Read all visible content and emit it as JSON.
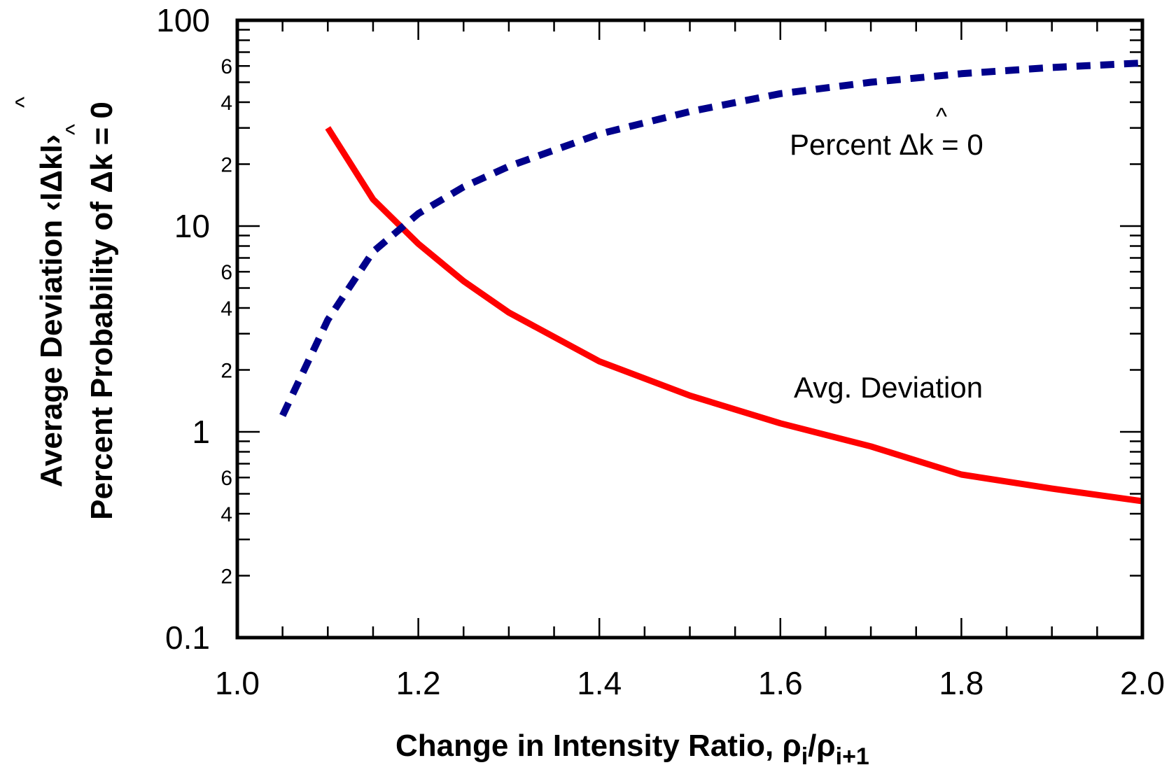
{
  "chart_data": {
    "type": "line",
    "title": "",
    "xlabel": "Change in Intensity Ratio, ρi/ρi+1",
    "xlabel_parts": {
      "main": "Change in Intensity Ratio, ρ",
      "sub1": "i",
      "slash": "/ρ",
      "sub2": "i+1"
    },
    "ylabel_line1": {
      "main": "Average Deviation ‹IΔkI›",
      "hat": "^"
    },
    "ylabel_line2": {
      "main": "Percent Probability of Δk = 0",
      "hat": "^"
    },
    "xlim": [
      1.0,
      2.0
    ],
    "ylim": [
      0.1,
      100
    ],
    "yscale": "log",
    "x_ticks": [
      {
        "value": 1.0,
        "label": "1.0"
      },
      {
        "value": 1.2,
        "label": "1.2"
      },
      {
        "value": 1.4,
        "label": "1.4"
      },
      {
        "value": 1.6,
        "label": "1.6"
      },
      {
        "value": 1.8,
        "label": "1.8"
      },
      {
        "value": 2.0,
        "label": "2.0"
      }
    ],
    "y_major_ticks": [
      {
        "value": 0.1,
        "label": "0.1"
      },
      {
        "value": 1,
        "label": "1"
      },
      {
        "value": 10,
        "label": "10"
      },
      {
        "value": 100,
        "label": "100"
      }
    ],
    "y_minor_labels": [
      {
        "value": 0.2,
        "label": "2"
      },
      {
        "value": 0.4,
        "label": "4"
      },
      {
        "value": 0.6,
        "label": "6"
      },
      {
        "value": 2,
        "label": "2"
      },
      {
        "value": 4,
        "label": "4"
      },
      {
        "value": 6,
        "label": "6"
      },
      {
        "value": 20,
        "label": "2"
      },
      {
        "value": 40,
        "label": "4"
      },
      {
        "value": 60,
        "label": "6"
      }
    ],
    "series": [
      {
        "name": "Avg. Deviation",
        "color": "#ff0000",
        "style": "solid",
        "x": [
          1.1,
          1.15,
          1.2,
          1.25,
          1.3,
          1.4,
          1.5,
          1.6,
          1.7,
          1.8,
          1.9,
          2.0
        ],
        "y": [
          30,
          13.5,
          8.2,
          5.4,
          3.8,
          2.2,
          1.5,
          1.1,
          0.85,
          0.62,
          0.53,
          0.46
        ]
      },
      {
        "name": "Percent Δk = 0",
        "color": "#00008b",
        "style": "dashed",
        "x": [
          1.05,
          1.1,
          1.15,
          1.2,
          1.25,
          1.3,
          1.4,
          1.5,
          1.6,
          1.7,
          1.8,
          1.9,
          2.0
        ],
        "y": [
          1.2,
          3.5,
          7.5,
          11.5,
          15.5,
          19.5,
          28,
          36,
          44,
          50,
          55,
          59,
          62
        ]
      }
    ],
    "annotations": [
      {
        "id": "percent",
        "main": "Percent Δk = 0",
        "part1": "Percent Δ",
        "part2": "k",
        "part3": " = 0",
        "hat": "^",
        "x": 1.6,
        "y": 19
      },
      {
        "id": "avgdev",
        "text": "Avg. Deviation",
        "x": 1.6,
        "y": 1.6
      }
    ]
  }
}
